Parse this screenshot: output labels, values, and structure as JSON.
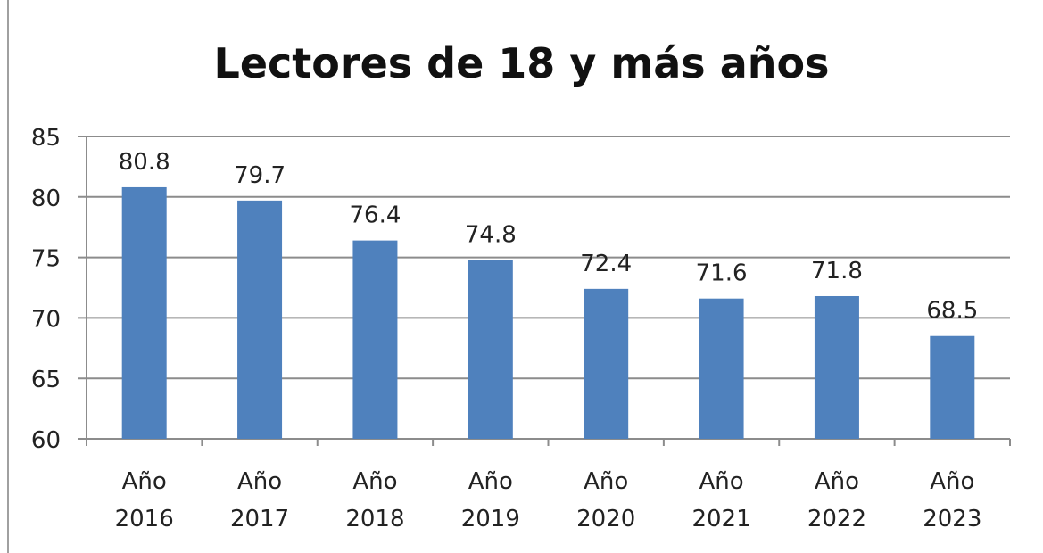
{
  "chart_data": {
    "type": "bar",
    "title": "Lectores de 18 y más años",
    "categories": [
      [
        "Año",
        "2016"
      ],
      [
        "Año",
        "2017"
      ],
      [
        "Año",
        "2018"
      ],
      [
        "Año",
        "2019"
      ],
      [
        "Año",
        "2020"
      ],
      [
        "Año",
        "2021"
      ],
      [
        "Año",
        "2022"
      ],
      [
        "Año",
        "2023"
      ]
    ],
    "values": [
      80.8,
      79.7,
      76.4,
      74.8,
      72.4,
      71.6,
      71.8,
      68.5
    ],
    "data_labels": [
      "80.8",
      "79.7",
      "76.4",
      "74.8",
      "72.4",
      "71.6",
      "71.8",
      "68.5"
    ],
    "xlabel": "",
    "ylabel": "",
    "ylim": [
      60,
      85
    ],
    "yticks": [
      60,
      65,
      70,
      75,
      80,
      85
    ],
    "grid": true,
    "legend": "none",
    "bar_color": "#4f81bd",
    "grid_color": "#8c8c8c"
  }
}
